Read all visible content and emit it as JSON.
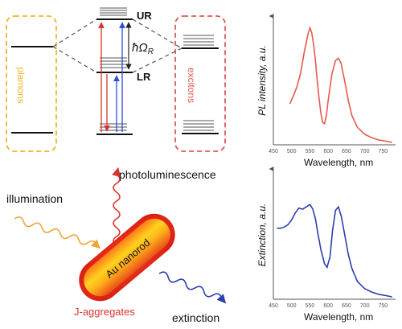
{
  "energy_diagram": {
    "upper_label": "UR",
    "lower_label": "LR",
    "rabi_label": "ħΩ",
    "rabi_sub": "R",
    "left_box_label": "plamons",
    "right_box_label": "excitons",
    "colors": {
      "plasmon_box": "#f0b429",
      "exciton_box": "#e05a4f",
      "arrow_red": "#d9342b",
      "arrow_blue": "#2b4fd9"
    }
  },
  "illustration": {
    "rod_label": "Au nanorod",
    "illumination_label": "illumination",
    "photoluminescence_label": "photoluminescence",
    "extinction_label": "extinction",
    "coating_label": "J-aggregates",
    "colors": {
      "illumination_wave": "#f2a33a",
      "pl_wave": "#d9342b",
      "extinction_wave": "#2b3fae",
      "coating_text": "#d9342b"
    }
  },
  "chart_data": [
    {
      "type": "line",
      "xlabel": "Wavelength, nm",
      "ylabel": "PL intensity, a.u.",
      "xlim": [
        450,
        780
      ],
      "x_ticks": [
        450,
        500,
        550,
        600,
        650,
        700,
        750
      ],
      "color": "#e8584b",
      "series": [
        {
          "x": [
            495,
            505,
            515,
            525,
            535,
            545,
            550,
            555,
            560,
            565,
            570,
            575,
            580,
            585,
            590,
            595,
            600,
            610,
            620,
            628,
            635,
            645,
            655,
            665,
            680,
            700,
            720,
            740,
            760,
            775
          ],
          "y": [
            0.35,
            0.42,
            0.5,
            0.62,
            0.8,
            0.95,
            1.0,
            0.96,
            0.86,
            0.72,
            0.55,
            0.4,
            0.27,
            0.19,
            0.18,
            0.25,
            0.38,
            0.6,
            0.72,
            0.74,
            0.7,
            0.55,
            0.38,
            0.25,
            0.15,
            0.09,
            0.06,
            0.04,
            0.03,
            0.02
          ]
        }
      ]
    },
    {
      "type": "line",
      "xlabel": "Wavelength, nm",
      "ylabel": "Extinction, a.u.",
      "xlim": [
        450,
        780
      ],
      "x_ticks": [
        450,
        500,
        550,
        600,
        650,
        700,
        750
      ],
      "color": "#2b3fae",
      "series": [
        {
          "x": [
            460,
            470,
            480,
            490,
            500,
            510,
            520,
            530,
            540,
            550,
            558,
            565,
            572,
            580,
            590,
            597,
            605,
            612,
            620,
            628,
            636,
            645,
            655,
            665,
            680,
            700,
            720,
            740,
            760,
            775
          ],
          "y": [
            0.6,
            0.6,
            0.61,
            0.63,
            0.67,
            0.73,
            0.77,
            0.76,
            0.78,
            0.8,
            0.76,
            0.68,
            0.55,
            0.42,
            0.3,
            0.27,
            0.36,
            0.58,
            0.75,
            0.78,
            0.7,
            0.55,
            0.38,
            0.26,
            0.15,
            0.09,
            0.06,
            0.04,
            0.03,
            0.02
          ]
        }
      ]
    }
  ]
}
